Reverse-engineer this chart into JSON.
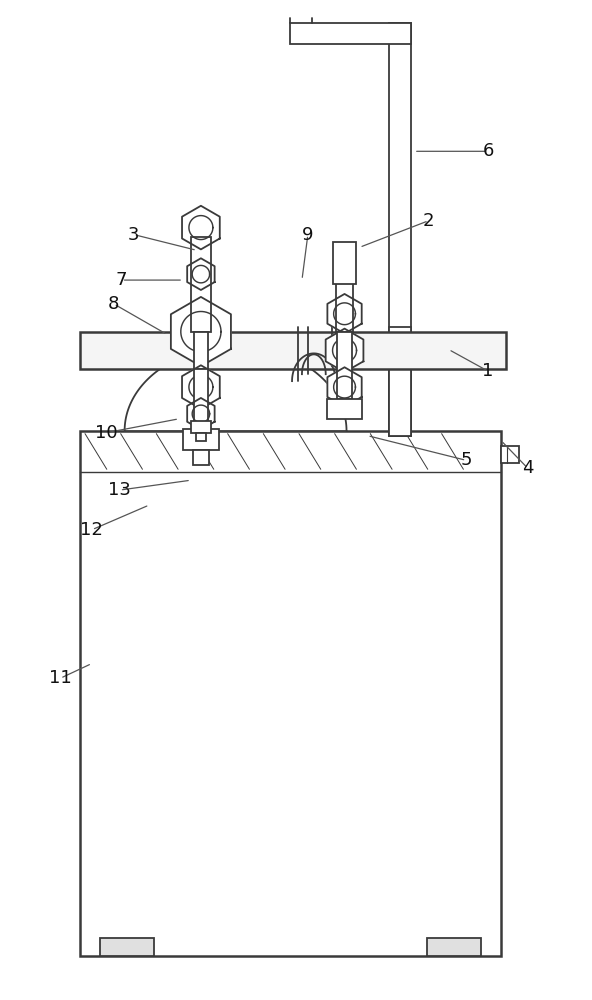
{
  "bg_color": "#ffffff",
  "lc": "#3a3a3a",
  "lw": 1.3,
  "tlw": 1.8,
  "label_fs": 13,
  "label_color": "#111111",
  "fig_w": 5.92,
  "fig_h": 10.0,
  "dpi": 100
}
